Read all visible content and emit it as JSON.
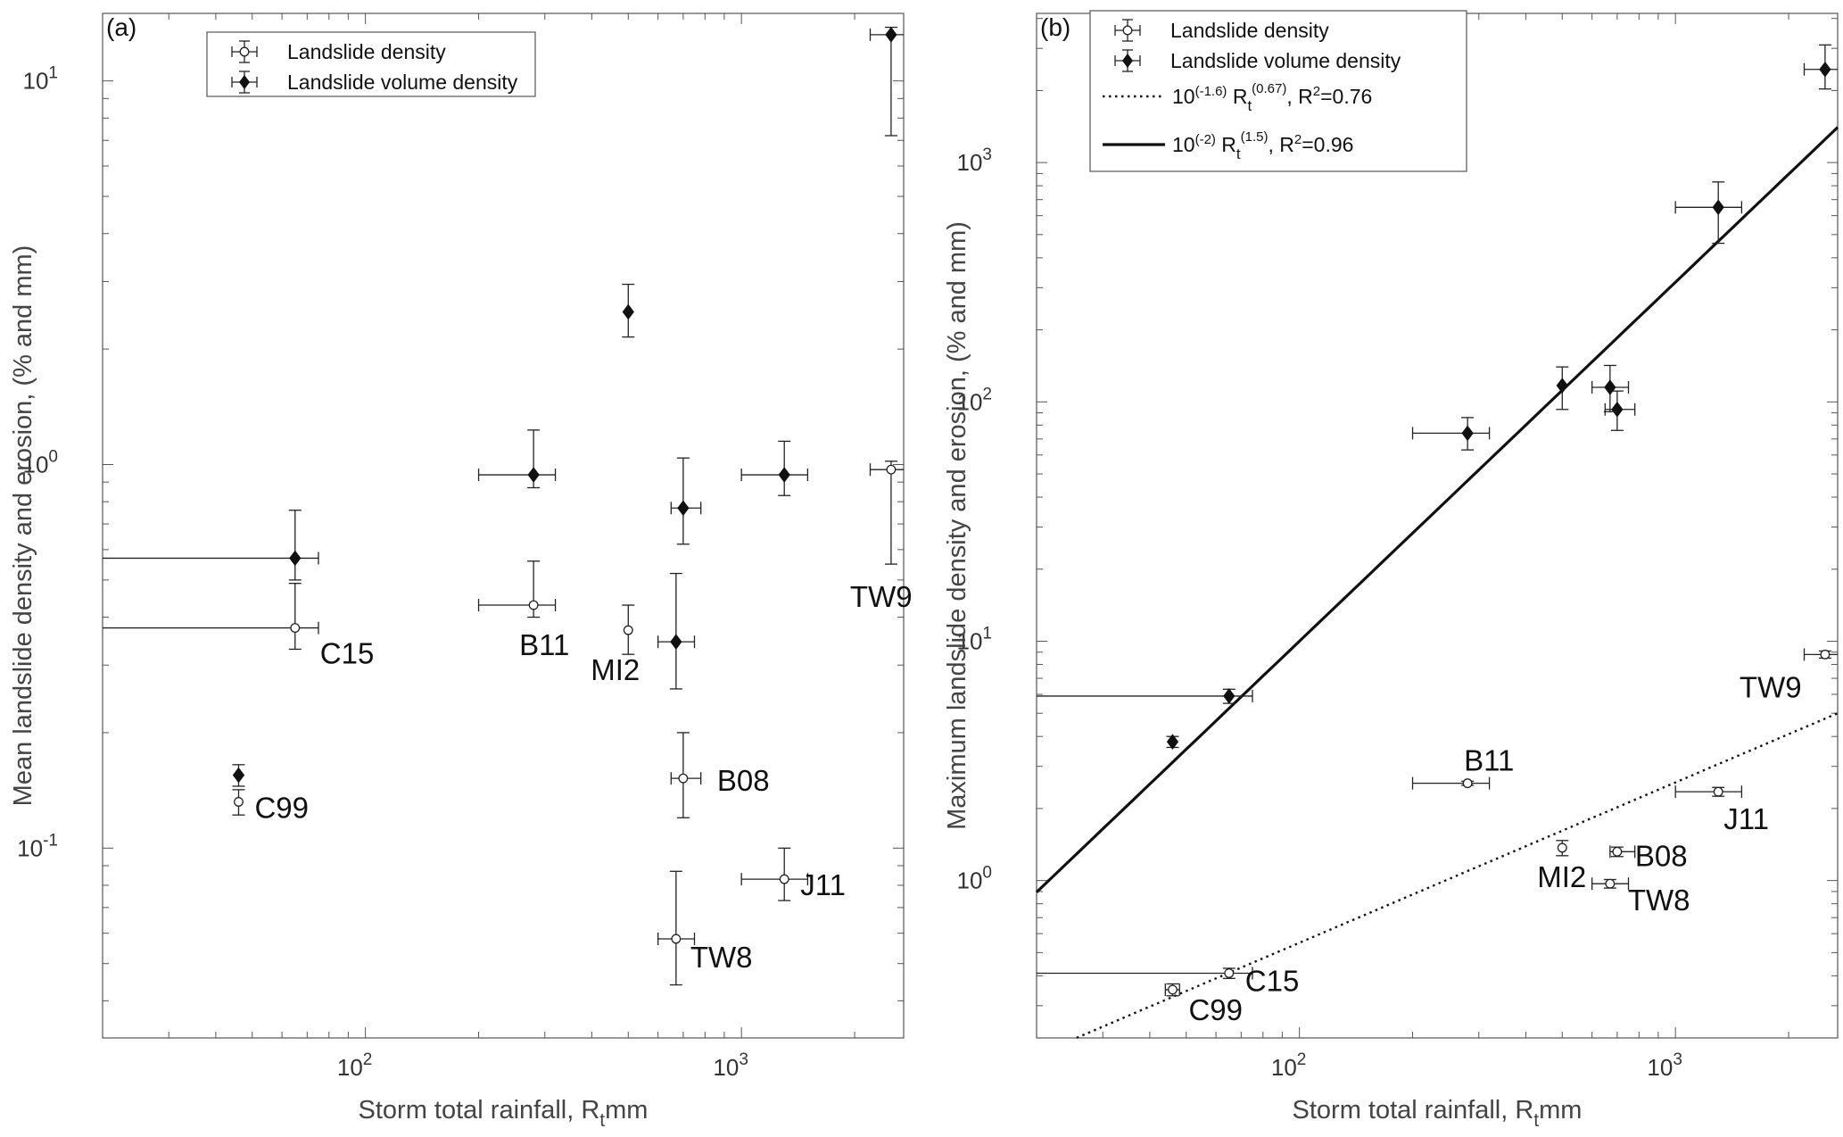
{
  "chart_data": [
    {
      "type": "scatter",
      "panel_label": "(a)",
      "xlabel": "Storm total rainfall, R",
      "xlabel_sub": "t",
      "xlabel_unit": "mm",
      "ylabel": "Mean landslide density and erosion, (% and mm)",
      "xscale": "log",
      "yscale": "log",
      "xlim": [
        20,
        2700
      ],
      "ylim": [
        0.032,
        15
      ],
      "x_ticks": [
        {
          "v": 100,
          "base": "10",
          "exp": "2"
        },
        {
          "v": 1000,
          "base": "10",
          "exp": "3"
        }
      ],
      "y_ticks": [
        {
          "v": 0.1,
          "base": "10",
          "exp": "-1"
        },
        {
          "v": 1,
          "base": "10",
          "exp": "0"
        },
        {
          "v": 10,
          "base": "10",
          "exp": "1"
        }
      ],
      "legend": {
        "placement": "top-center",
        "entries": [
          {
            "label": "Landslide density",
            "marker": "circle"
          },
          {
            "label": "Landslide volume density",
            "marker": "diamond"
          }
        ]
      },
      "series": [
        {
          "name": "Landslide density",
          "marker": "circle",
          "points": [
            {
              "site": "C99",
              "x": 46,
              "y": 0.132,
              "y_err": [
                0.122,
                0.142
              ],
              "x_err": [
                46,
                46
              ]
            },
            {
              "site": "C15",
              "x": 65,
              "y": 0.375,
              "y_err": [
                0.33,
                0.49
              ],
              "x_err": [
                20,
                75
              ]
            },
            {
              "site": "B11",
              "x": 280,
              "y": 0.43,
              "y_err": [
                0.4,
                0.56
              ],
              "x_err": [
                200,
                320
              ]
            },
            {
              "site": "MI2",
              "x": 500,
              "y": 0.37,
              "y_err": [
                0.32,
                0.43
              ],
              "x_err": [
                500,
                500
              ]
            },
            {
              "site": "B08",
              "x": 700,
              "y": 0.152,
              "y_err": [
                0.12,
                0.2
              ],
              "x_err": [
                650,
                780
              ]
            },
            {
              "site": "J11",
              "x": 1300,
              "y": 0.083,
              "y_err": [
                0.073,
                0.1
              ],
              "x_err": [
                1000,
                1500
              ]
            },
            {
              "site": "TW8",
              "x": 670,
              "y": 0.058,
              "y_err": [
                0.044,
                0.087
              ],
              "x_err": [
                600,
                750
              ]
            },
            {
              "site": "TW9",
              "x": 2500,
              "y": 0.97,
              "y_err": [
                0.55,
                1.02
              ],
              "x_err": [
                2200,
                2800
              ]
            }
          ]
        },
        {
          "name": "Landslide volume density",
          "marker": "diamond",
          "points": [
            {
              "site": "C99",
              "x": 46,
              "y": 0.155,
              "y_err": [
                0.145,
                0.165
              ],
              "x_err": [
                46,
                46
              ]
            },
            {
              "site": "C15",
              "x": 65,
              "y": 0.57,
              "y_err": [
                0.5,
                0.76
              ],
              "x_err": [
                20,
                75
              ]
            },
            {
              "site": "B11",
              "x": 280,
              "y": 0.94,
              "y_err": [
                0.87,
                1.23
              ],
              "x_err": [
                200,
                320
              ]
            },
            {
              "site": "MI2",
              "x": 500,
              "y": 2.5,
              "y_err": [
                2.15,
                2.95
              ],
              "x_err": [
                500,
                500
              ]
            },
            {
              "site": "B08",
              "x": 700,
              "y": 0.77,
              "y_err": [
                0.62,
                1.04
              ],
              "x_err": [
                650,
                780
              ]
            },
            {
              "site": "J11",
              "x": 1300,
              "y": 0.94,
              "y_err": [
                0.83,
                1.15
              ],
              "x_err": [
                1000,
                1500
              ]
            },
            {
              "site": "TW8",
              "x": 670,
              "y": 0.345,
              "y_err": [
                0.26,
                0.52
              ],
              "x_err": [
                600,
                750
              ]
            },
            {
              "site": "TW9",
              "x": 2500,
              "y": 13.2,
              "y_err": [
                7.2,
                13.8
              ],
              "x_err": [
                2200,
                2800
              ]
            }
          ]
        }
      ],
      "point_labels": [
        {
          "text": "C99",
          "x": 46,
          "y": 0.132,
          "dx": 18,
          "dy": 18
        },
        {
          "text": "C15",
          "x": 65,
          "y": 0.375,
          "dx": 28,
          "dy": 40
        },
        {
          "text": "B11",
          "x": 280,
          "y": 0.43,
          "dx": -16,
          "dy": 56
        },
        {
          "text": "MI2",
          "x": 500,
          "y": 0.37,
          "dx": -42,
          "dy": 56
        },
        {
          "text": "B08",
          "x": 700,
          "y": 0.152,
          "dx": 38,
          "dy": 14
        },
        {
          "text": "J11",
          "x": 1300,
          "y": 0.083,
          "dx": 18,
          "dy": 18
        },
        {
          "text": "TW8",
          "x": 670,
          "y": 0.058,
          "dx": 16,
          "dy": 32
        },
        {
          "text": "TW9",
          "x": 2500,
          "y": 0.97,
          "dx": -46,
          "dy": 154
        }
      ]
    },
    {
      "type": "scatter",
      "panel_label": "(b)",
      "xlabel": "Storm total rainfall, R",
      "xlabel_sub": "t",
      "xlabel_unit": "mm",
      "ylabel": "Maximum landslide density and erosion, (% and mm)",
      "xscale": "log",
      "yscale": "log",
      "xlim": [
        20,
        2700
      ],
      "ylim": [
        0.22,
        4200
      ],
      "x_ticks": [
        {
          "v": 100,
          "base": "10",
          "exp": "2"
        },
        {
          "v": 1000,
          "base": "10",
          "exp": "3"
        }
      ],
      "y_ticks": [
        {
          "v": 1,
          "base": "10",
          "exp": "0"
        },
        {
          "v": 10,
          "base": "10",
          "exp": "1"
        },
        {
          "v": 100,
          "base": "10",
          "exp": "2"
        },
        {
          "v": 1000,
          "base": "10",
          "exp": "3"
        }
      ],
      "legend": {
        "placement": "top-left",
        "entries": [
          {
            "label": "Landslide density",
            "marker": "circle"
          },
          {
            "label": "Landslide volume density",
            "marker": "diamond"
          },
          {
            "label_pre": "10",
            "label_pre_sup": "(-1.6)",
            "label_mid": " R",
            "label_sub": "t",
            "label_sup": "(0.67)",
            "label_post": ", R",
            "label_post_sup": "2",
            "label_end": "=0.76",
            "line": "dotted"
          },
          {
            "label_pre": "10",
            "label_pre_sup": "(-2)",
            "label_mid": " R",
            "label_sub": "t",
            "label_sup": "(1.5)",
            "label_post": ", R",
            "label_post_sup": "2",
            "label_end": "=0.96",
            "line": "solid"
          }
        ]
      },
      "fits": [
        {
          "style": "dotted",
          "a_exp": -1.6,
          "b": 0.67,
          "r2": 0.76
        },
        {
          "style": "solid",
          "a_exp": -2,
          "b": 1.5,
          "r2": 0.96
        }
      ],
      "series": [
        {
          "name": "Landslide density",
          "marker": "circle",
          "points": [
            {
              "site": "C99",
              "x": 46,
              "y": 0.35,
              "y_err": [
                0.33,
                0.37
              ],
              "x_err": [
                44,
                48
              ]
            },
            {
              "site": "C15",
              "x": 65,
              "y": 0.41,
              "y_err": [
                0.39,
                0.43
              ],
              "x_err": [
                20,
                75
              ]
            },
            {
              "site": "B11",
              "x": 280,
              "y": 2.55,
              "y_err": [
                2.5,
                2.6
              ],
              "x_err": [
                200,
                320
              ]
            },
            {
              "site": "MI2",
              "x": 500,
              "y": 1.37,
              "y_err": [
                1.27,
                1.47
              ],
              "x_err": [
                500,
                500
              ]
            },
            {
              "site": "B08",
              "x": 700,
              "y": 1.32,
              "y_err": [
                1.26,
                1.38
              ],
              "x_err": [
                670,
                780
              ]
            },
            {
              "site": "J11",
              "x": 1300,
              "y": 2.35,
              "y_err": [
                2.25,
                2.45
              ],
              "x_err": [
                1000,
                1500
              ]
            },
            {
              "site": "TW8",
              "x": 670,
              "y": 0.97,
              "y_err": [
                0.93,
                1.01
              ],
              "x_err": [
                600,
                750
              ]
            },
            {
              "site": "TW9",
              "x": 2500,
              "y": 8.8,
              "y_err": [
                8.5,
                9.1
              ],
              "x_err": [
                2200,
                2800
              ]
            }
          ]
        },
        {
          "name": "Landslide volume density",
          "marker": "diamond",
          "points": [
            {
              "site": "C99",
              "x": 46,
              "y": 3.8,
              "y_err": [
                3.6,
                4.0
              ],
              "x_err": [
                46,
                46
              ]
            },
            {
              "site": "C15",
              "x": 65,
              "y": 5.9,
              "y_err": [
                5.5,
                6.3
              ],
              "x_err": [
                20,
                75
              ]
            },
            {
              "site": "B11",
              "x": 280,
              "y": 74,
              "y_err": [
                63,
                86
              ],
              "x_err": [
                200,
                320
              ]
            },
            {
              "site": "MI2",
              "x": 500,
              "y": 117,
              "y_err": [
                93,
                140
              ],
              "x_err": [
                500,
                500
              ]
            },
            {
              "site": "B08",
              "x": 700,
              "y": 93,
              "y_err": [
                76,
                111
              ],
              "x_err": [
                650,
                780
              ]
            },
            {
              "site": "J11",
              "x": 1300,
              "y": 650,
              "y_err": [
                460,
                830
              ],
              "x_err": [
                1000,
                1500
              ]
            },
            {
              "site": "TW8",
              "x": 670,
              "y": 115,
              "y_err": [
                91,
                142
              ],
              "x_err": [
                600,
                750
              ]
            },
            {
              "site": "TW9",
              "x": 2500,
              "y": 2450,
              "y_err": [
                2030,
                3100
              ],
              "x_err": [
                2200,
                2800
              ]
            }
          ]
        }
      ],
      "point_labels": [
        {
          "text": "C99",
          "x": 46,
          "y": 0.35,
          "dx": 18,
          "dy": 34
        },
        {
          "text": "C15",
          "x": 65,
          "y": 0.41,
          "dx": 18,
          "dy": 20
        },
        {
          "text": "B11",
          "x": 280,
          "y": 2.55,
          "dx": -4,
          "dy": -14
        },
        {
          "text": "MI2",
          "x": 500,
          "y": 1.37,
          "dx": -28,
          "dy": 44
        },
        {
          "text": "B08",
          "x": 700,
          "y": 1.32,
          "dx": 20,
          "dy": 16
        },
        {
          "text": "J11",
          "x": 1300,
          "y": 2.35,
          "dx": 6,
          "dy": 42
        },
        {
          "text": "TW8",
          "x": 670,
          "y": 0.97,
          "dx": 20,
          "dy": 30
        },
        {
          "text": "TW9",
          "x": 2500,
          "y": 8.8,
          "dx": -96,
          "dy": 48
        }
      ]
    }
  ]
}
